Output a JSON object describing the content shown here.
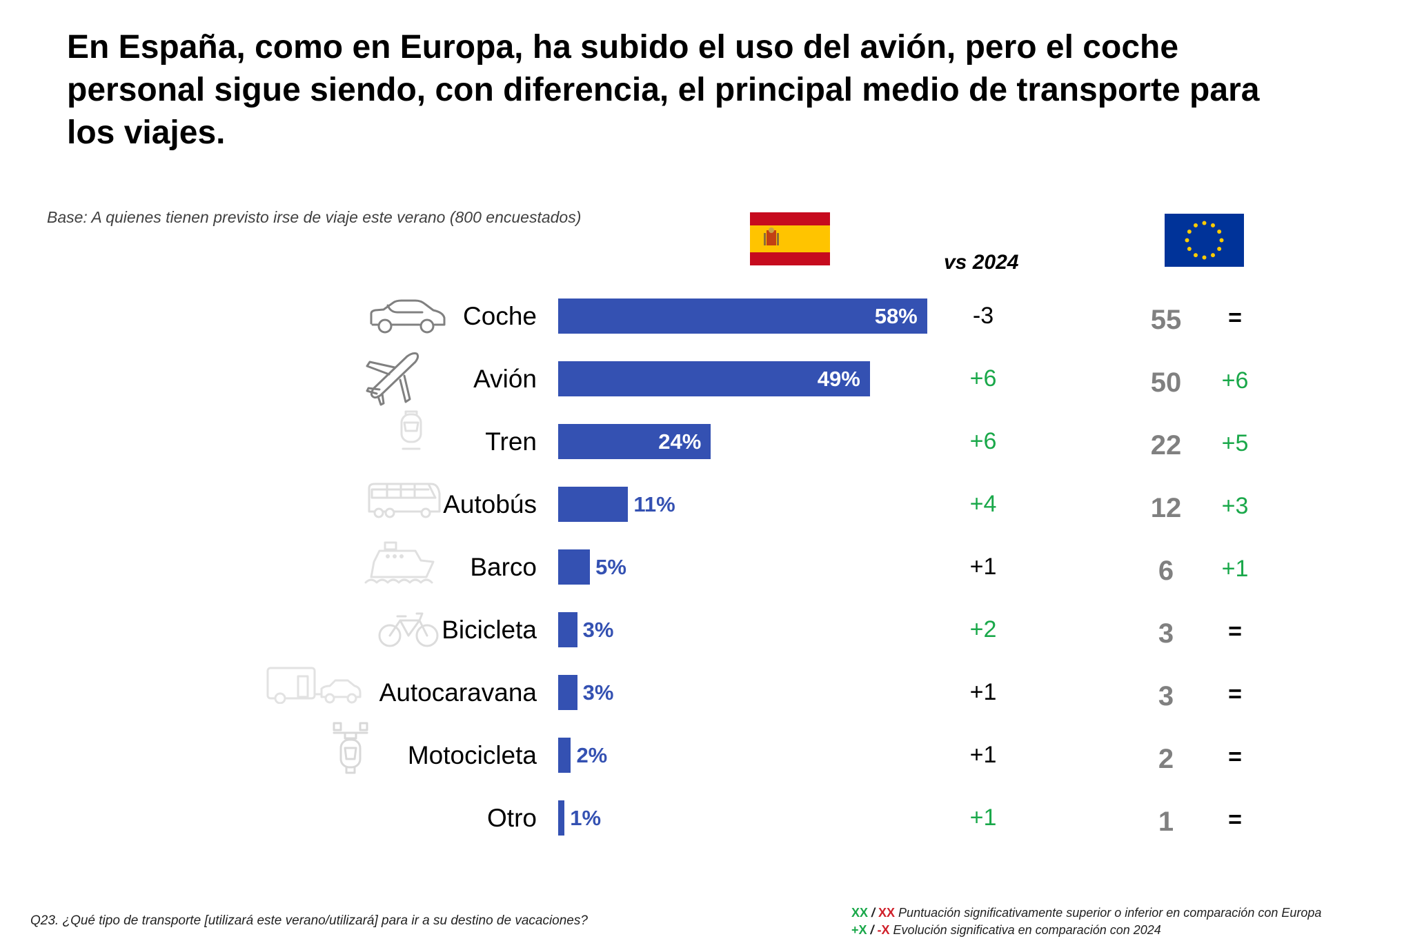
{
  "title": "En España, como en Europa, ha subido el uso del avión, pero el coche personal sigue siendo, con diferencia, el principal medio de transporte para los viajes.",
  "base_note": "Base: A quienes tienen previsto irse de viaje este verano (800 encuestados)",
  "columns": {
    "spain_flag": "spain-flag",
    "vs_label": "vs 2024",
    "eu_flag": "eu-flag"
  },
  "colors": {
    "bar": "#3451b2",
    "significant_up": "#1aa84a",
    "significant_down": "#d0202a",
    "neutral": "#000000",
    "eu_value": "#808080"
  },
  "chart_data": {
    "type": "bar",
    "orientation": "horizontal",
    "title": "En España, como en Europa, ha subido el uso del avión, pero el coche personal sigue siendo, con diferencia, el principal medio de transporte para los viajes.",
    "xlabel": "",
    "ylabel": "",
    "xlim": [
      0,
      100
    ],
    "grid": false,
    "categories": [
      "Coche",
      "Avión",
      "Tren",
      "Autobús",
      "Barco",
      "Bicicleta",
      "Autocaravana",
      "Motocicleta",
      "Otro"
    ],
    "series": [
      {
        "name": "España",
        "values": [
          58,
          49,
          24,
          11,
          5,
          3,
          3,
          2,
          1
        ]
      },
      {
        "name": "Europa",
        "values": [
          55,
          50,
          22,
          12,
          6,
          3,
          3,
          2,
          1
        ]
      }
    ],
    "value_labels": [
      "58%",
      "49%",
      "24%",
      "11%",
      "5%",
      "3%",
      "3%",
      "2%",
      "1%"
    ],
    "spain_vs_2024": [
      "-3",
      "+6",
      "+6",
      "+4",
      "+1",
      "+2",
      "+1",
      "+1",
      "+1"
    ],
    "spain_vs_2024_significant": [
      false,
      true,
      true,
      true,
      false,
      true,
      false,
      false,
      true
    ],
    "europe_vs_2024": [
      "=",
      "+6",
      "+5",
      "+3",
      "+1",
      "=",
      "=",
      "=",
      "="
    ],
    "europe_vs_2024_significant": [
      false,
      true,
      true,
      true,
      true,
      false,
      false,
      false,
      false
    ],
    "icons": [
      "car-icon",
      "airplane-icon",
      "train-icon",
      "bus-icon",
      "boat-icon",
      "bicycle-icon",
      "caravan-icon",
      "motorcycle-icon",
      ""
    ]
  },
  "footer": {
    "question": "Q23. ¿Qué tipo de transporte [utilizará este verano/utilizará] para ir a su destino de vacaciones?",
    "legend_line1_green": "XX",
    "legend_line1_sep": " / ",
    "legend_line1_red": "XX",
    "legend_line1_text": " Puntuación significativamente superior o inferior en comparación con Europa",
    "legend_line2_green": "+X",
    "legend_line2_sep": " / ",
    "legend_line2_red": "-X",
    "legend_line2_text": " Evolución significativa en comparación con 2024"
  }
}
